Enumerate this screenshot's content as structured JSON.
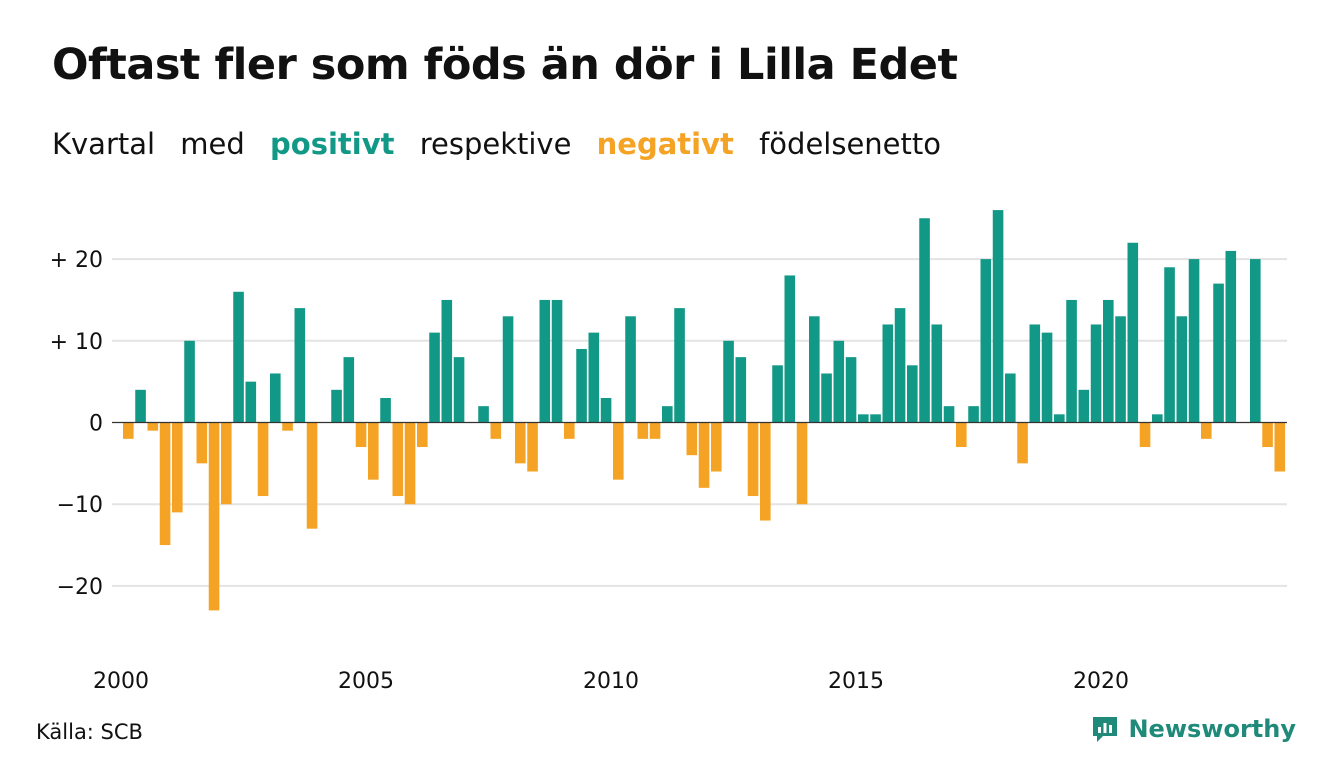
{
  "title": "Oftast fler som föds än dör i Lilla Edet",
  "subtitle": {
    "part1": "Kvartal",
    "part2": "med",
    "positive": "positivt",
    "part3": "respektive",
    "negative": "negativt",
    "part4": "födelsenetto"
  },
  "source": "Källa: SCB",
  "brand": "Newsworthy",
  "colors": {
    "positive": "#129886",
    "negative": "#F5A325",
    "grid": "#e3e3e3",
    "zero": "#333333",
    "brand": "#1f8a7a"
  },
  "chart_data": {
    "type": "bar",
    "x_start": "2000 Q1",
    "x_tick_labels": [
      "2000",
      "2005",
      "2010",
      "2015",
      "2020"
    ],
    "y_tick_labels": [
      "+ 20",
      "+ 10",
      "0",
      "−10",
      "−20"
    ],
    "y_ticks": [
      20,
      10,
      0,
      -10,
      -20
    ],
    "ylim": [
      -23,
      26
    ],
    "grid": true,
    "values": [
      -2,
      4,
      -1,
      -15,
      -11,
      10,
      -5,
      -23,
      -10,
      16,
      5,
      -9,
      6,
      -1,
      14,
      -13,
      0,
      4,
      8,
      -3,
      -7,
      3,
      -9,
      -10,
      -3,
      11,
      15,
      8,
      0,
      2,
      -2,
      13,
      -5,
      -6,
      15,
      15,
      -2,
      9,
      11,
      3,
      -7,
      13,
      -2,
      -2,
      2,
      14,
      -4,
      -8,
      -6,
      10,
      8,
      -9,
      -12,
      7,
      18,
      -10,
      13,
      6,
      10,
      8,
      1,
      1,
      12,
      14,
      7,
      25,
      12,
      2,
      -3,
      2,
      20,
      26,
      6,
      -5,
      12,
      11,
      1,
      15,
      4,
      12,
      15,
      13,
      22,
      -3,
      1,
      19,
      13,
      20,
      -2,
      17,
      21,
      0,
      20,
      -3,
      -6
    ]
  }
}
